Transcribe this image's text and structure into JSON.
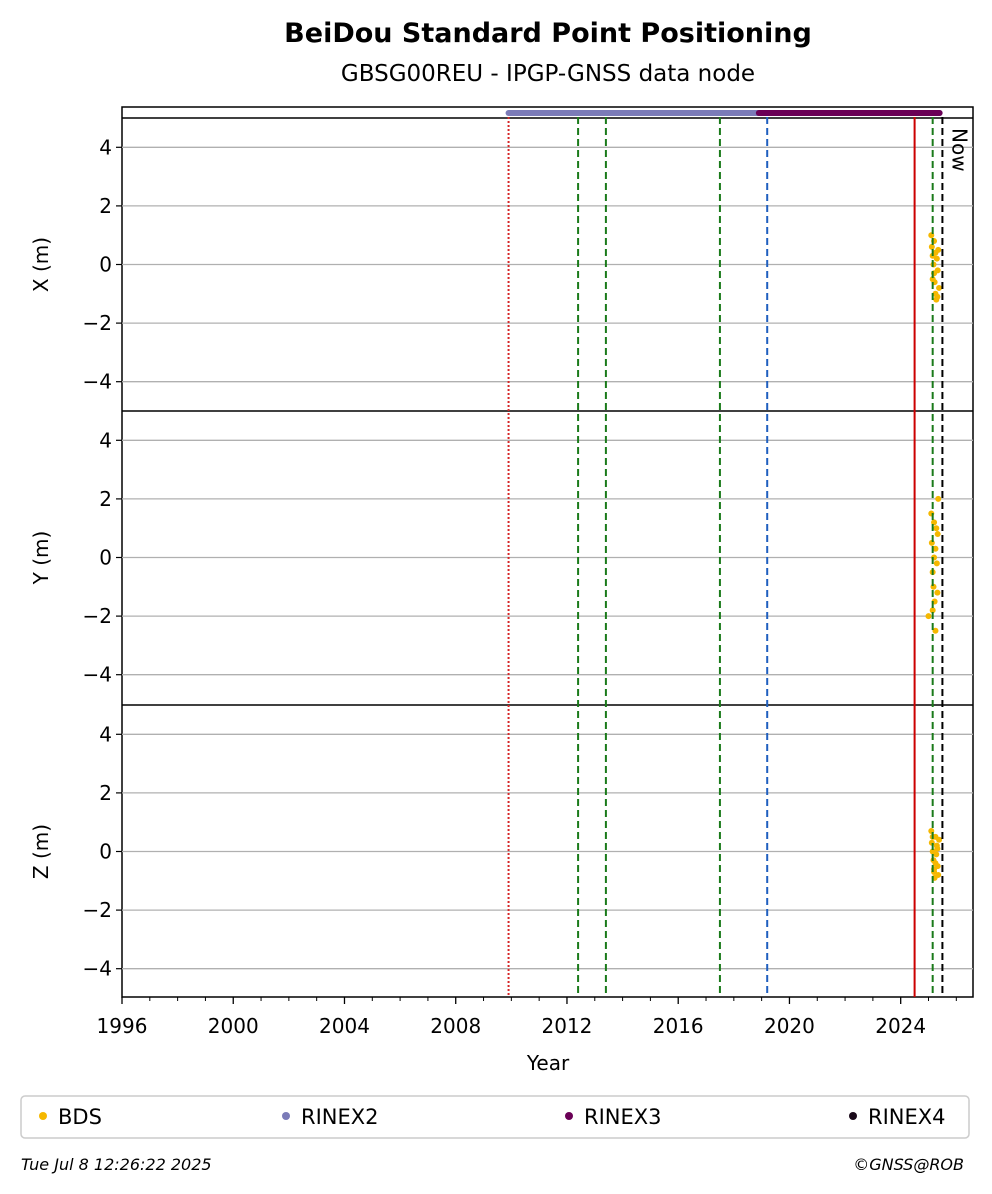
{
  "chart_data": {
    "type": "scatter",
    "title": "BeiDou Standard Point Positioning",
    "subtitle": "GBSG00REU - IPGP-GNSS data node",
    "xlabel": "Year",
    "xlim": [
      1996,
      2026.6
    ],
    "xticks": [
      1996,
      2000,
      2004,
      2008,
      2012,
      2016,
      2020,
      2024
    ],
    "panels": [
      {
        "key": "x",
        "ylabel": "X (m)",
        "ylim": [
          -5,
          5
        ],
        "yticks": [
          4,
          2,
          0,
          -2,
          -4
        ],
        "points": [
          [
            2025.1,
            1.0
          ],
          [
            2025.12,
            0.6
          ],
          [
            2025.15,
            0.3
          ],
          [
            2025.18,
            0.0
          ],
          [
            2025.2,
            -0.3
          ],
          [
            2025.22,
            -0.6
          ],
          [
            2025.25,
            -1.0
          ],
          [
            2025.28,
            -1.2
          ],
          [
            2025.3,
            0.2
          ],
          [
            2025.33,
            -0.2
          ],
          [
            2025.35,
            0.5
          ],
          [
            2025.38,
            -0.8
          ],
          [
            2025.15,
            -0.5
          ],
          [
            2025.25,
            0.4
          ],
          [
            2025.32,
            -1.1
          ],
          [
            2025.2,
            0.8
          ]
        ]
      },
      {
        "key": "y",
        "ylabel": "Y (m)",
        "ylim": [
          -5,
          5
        ],
        "yticks": [
          4,
          2,
          0,
          -2,
          -4
        ],
        "points": [
          [
            2025.0,
            -2.0
          ],
          [
            2025.1,
            1.5
          ],
          [
            2025.12,
            0.5
          ],
          [
            2025.15,
            -0.5
          ],
          [
            2025.18,
            -1.0
          ],
          [
            2025.2,
            0.0
          ],
          [
            2025.22,
            -1.5
          ],
          [
            2025.25,
            -2.5
          ],
          [
            2025.28,
            1.0
          ],
          [
            2025.3,
            -0.2
          ],
          [
            2025.33,
            0.8
          ],
          [
            2025.35,
            2.0
          ],
          [
            2025.15,
            -1.8
          ],
          [
            2025.25,
            0.3
          ],
          [
            2025.32,
            -1.2
          ],
          [
            2025.2,
            1.2
          ]
        ]
      },
      {
        "key": "z",
        "ylabel": "Z (m)",
        "ylim": [
          -5,
          5
        ],
        "yticks": [
          4,
          2,
          0,
          -2,
          -4
        ],
        "points": [
          [
            2025.1,
            0.7
          ],
          [
            2025.12,
            0.3
          ],
          [
            2025.15,
            0.0
          ],
          [
            2025.18,
            -0.3
          ],
          [
            2025.2,
            -0.6
          ],
          [
            2025.22,
            -0.9
          ],
          [
            2025.25,
            0.5
          ],
          [
            2025.28,
            -0.1
          ],
          [
            2025.3,
            0.2
          ],
          [
            2025.33,
            -0.5
          ],
          [
            2025.35,
            -0.8
          ],
          [
            2025.38,
            0.4
          ],
          [
            2025.15,
            0.5
          ],
          [
            2025.25,
            -0.4
          ],
          [
            2025.32,
            0.1
          ],
          [
            2025.2,
            -0.7
          ]
        ]
      }
    ],
    "rinex_bars": [
      {
        "name": "RINEX2",
        "start": 2009.9,
        "end": 2025.4
      },
      {
        "name": "RINEX3",
        "start": 2018.9,
        "end": 2025.4
      }
    ],
    "event_lines": [
      {
        "x": 2009.9,
        "color": "#d62728",
        "style": "dotted"
      },
      {
        "x": 2012.4,
        "color": "#1a7a1a",
        "style": "dashed"
      },
      {
        "x": 2013.4,
        "color": "#1a7a1a",
        "style": "dashed"
      },
      {
        "x": 2017.5,
        "color": "#1a7a1a",
        "style": "dashed"
      },
      {
        "x": 2019.2,
        "color": "#1f5fbf",
        "style": "dashed"
      },
      {
        "x": 2024.5,
        "color": "#cc0000",
        "style": "solid"
      },
      {
        "x": 2025.15,
        "color": "#1a7a1a",
        "style": "dashed"
      },
      {
        "x": 2025.5,
        "color": "#000000",
        "style": "dashed"
      }
    ],
    "now_label": "Now",
    "now_x": 2025.5,
    "legend_position": "bottom",
    "legend": [
      {
        "name": "BDS",
        "color": "#f5b800"
      },
      {
        "name": "RINEX2",
        "color": "#7b7bb8"
      },
      {
        "name": "RINEX3",
        "color": "#6a0056"
      },
      {
        "name": "RINEX4",
        "color": "#1a0a1a"
      }
    ],
    "grid": true
  },
  "footer": {
    "timestamp": "Tue Jul  8 12:26:22 2025",
    "copyright": "©GNSS@ROB"
  }
}
